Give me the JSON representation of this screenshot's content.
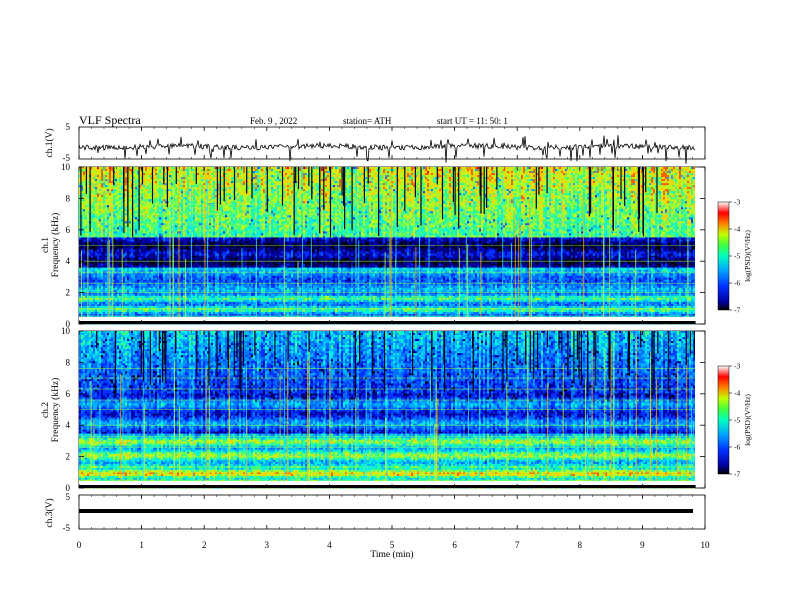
{
  "header": {
    "title": "VLF  Spectra",
    "date": "Feb. 9  , 2022",
    "station": "station= ATH",
    "start_ut": "start  UT  =    11: 50: 1"
  },
  "chart_data": [
    {
      "name": "ch1-waveform",
      "type": "line",
      "ylabel": "ch.1(V)",
      "yticks": [
        "5",
        "-5"
      ],
      "ylim": [
        -5,
        5
      ],
      "trace_color": "#000000"
    },
    {
      "name": "ch1-spectrogram",
      "type": "heatmap",
      "ylabel": "ch.1\nFrequency  (kHz)",
      "ylabel_line1": "ch.1",
      "ylabel_line2": "Frequency  (kHz)",
      "yticks": [
        "0",
        "2",
        "4",
        "6",
        "8",
        "10"
      ],
      "ylim_khz": [
        0,
        10
      ],
      "colorbar": {
        "label": "log(PSD)(V²/Hz)",
        "ticks": [
          "-3",
          "-4",
          "-5",
          "-6",
          "-7"
        ],
        "range": [
          -7,
          -3
        ],
        "colors": [
          "#000000",
          "#0000a0",
          "#0030ff",
          "#00a0ff",
          "#00ffc0",
          "#40ff40",
          "#c0ff00",
          "#ff8000",
          "#ff0000",
          "#ffffff"
        ]
      }
    },
    {
      "name": "ch2-spectrogram",
      "type": "heatmap",
      "ylabel_line1": "ch.2",
      "ylabel_line2": "Frequency  (kHz)",
      "yticks": [
        "0",
        "2",
        "4",
        "6",
        "8",
        "10"
      ],
      "ylim_khz": [
        0,
        10
      ],
      "colorbar": {
        "label": "log(PSD)(V²/Hz)",
        "ticks": [
          "-3",
          "-4",
          "-5",
          "-6",
          "-7"
        ],
        "range": [
          -7,
          -3
        ]
      }
    },
    {
      "name": "ch3-waveform",
      "type": "line",
      "ylabel": "ch.3(V)",
      "yticks": [
        "5",
        "-5"
      ],
      "ylim": [
        -5,
        5
      ],
      "trace_color": "#000000"
    }
  ],
  "xaxis": {
    "label": "Time  (min)",
    "ticks": [
      "0",
      "1",
      "2",
      "3",
      "4",
      "5",
      "6",
      "7",
      "8",
      "9",
      "10"
    ],
    "xlim": [
      0,
      10
    ],
    "data_end_min": 9.85
  }
}
